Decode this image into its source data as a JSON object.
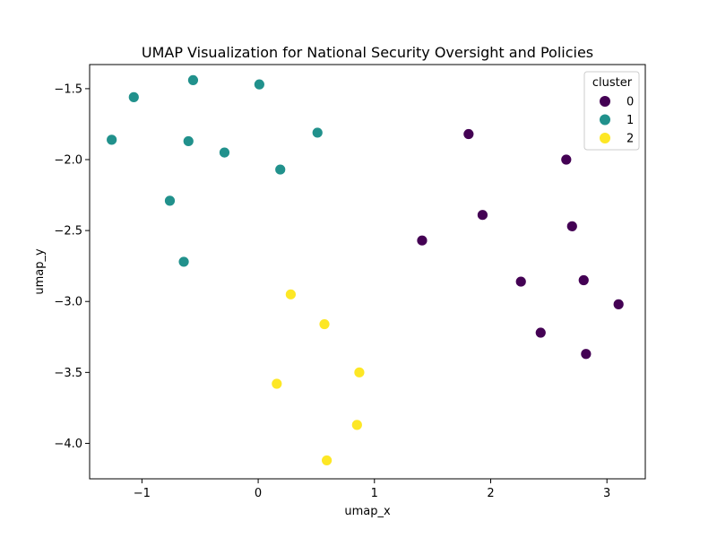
{
  "chart_data": {
    "type": "scatter",
    "title": "UMAP Visualization for National Security Oversight and Policies",
    "xlabel": "umap_x",
    "ylabel": "umap_y",
    "xlim": [
      -1.45,
      3.33
    ],
    "ylim": [
      -4.25,
      -1.33
    ],
    "xticks": [
      -1,
      0,
      1,
      2,
      3
    ],
    "yticks": [
      -4.0,
      -3.5,
      -3.0,
      -2.5,
      -2.0,
      -1.5
    ],
    "xtick_labels": [
      "−1",
      "0",
      "1",
      "2",
      "3"
    ],
    "ytick_labels": [
      "−4.0",
      "−3.5",
      "−3.0",
      "−2.5",
      "−2.0",
      "−1.5"
    ],
    "grid": false,
    "legend": {
      "title": "cluster",
      "placement": "top-right",
      "entries": [
        {
          "label": "0",
          "color": "#440154"
        },
        {
          "label": "1",
          "color": "#21918c"
        },
        {
          "label": "2",
          "color": "#fde725"
        }
      ]
    },
    "series": [
      {
        "cluster": "0",
        "color": "#440154",
        "points": [
          {
            "x": 1.81,
            "y": -1.82
          },
          {
            "x": 2.65,
            "y": -2.0
          },
          {
            "x": 1.93,
            "y": -2.39
          },
          {
            "x": 2.7,
            "y": -2.47
          },
          {
            "x": 1.41,
            "y": -2.57
          },
          {
            "x": 2.26,
            "y": -2.86
          },
          {
            "x": 2.8,
            "y": -2.85
          },
          {
            "x": 3.1,
            "y": -3.02
          },
          {
            "x": 2.43,
            "y": -3.22
          },
          {
            "x": 2.82,
            "y": -3.37
          }
        ]
      },
      {
        "cluster": "1",
        "color": "#21918c",
        "points": [
          {
            "x": -0.56,
            "y": -1.44
          },
          {
            "x": 0.01,
            "y": -1.47
          },
          {
            "x": -1.07,
            "y": -1.56
          },
          {
            "x": 0.51,
            "y": -1.81
          },
          {
            "x": -1.26,
            "y": -1.86
          },
          {
            "x": -0.6,
            "y": -1.87
          },
          {
            "x": -0.29,
            "y": -1.95
          },
          {
            "x": 0.19,
            "y": -2.07
          },
          {
            "x": -0.76,
            "y": -2.29
          },
          {
            "x": -0.64,
            "y": -2.72
          }
        ]
      },
      {
        "cluster": "2",
        "color": "#fde725",
        "points": [
          {
            "x": 0.28,
            "y": -2.95
          },
          {
            "x": 0.57,
            "y": -3.16
          },
          {
            "x": 0.87,
            "y": -3.5
          },
          {
            "x": 0.16,
            "y": -3.58
          },
          {
            "x": 0.85,
            "y": -3.87
          },
          {
            "x": 0.59,
            "y": -4.12
          }
        ]
      }
    ]
  }
}
